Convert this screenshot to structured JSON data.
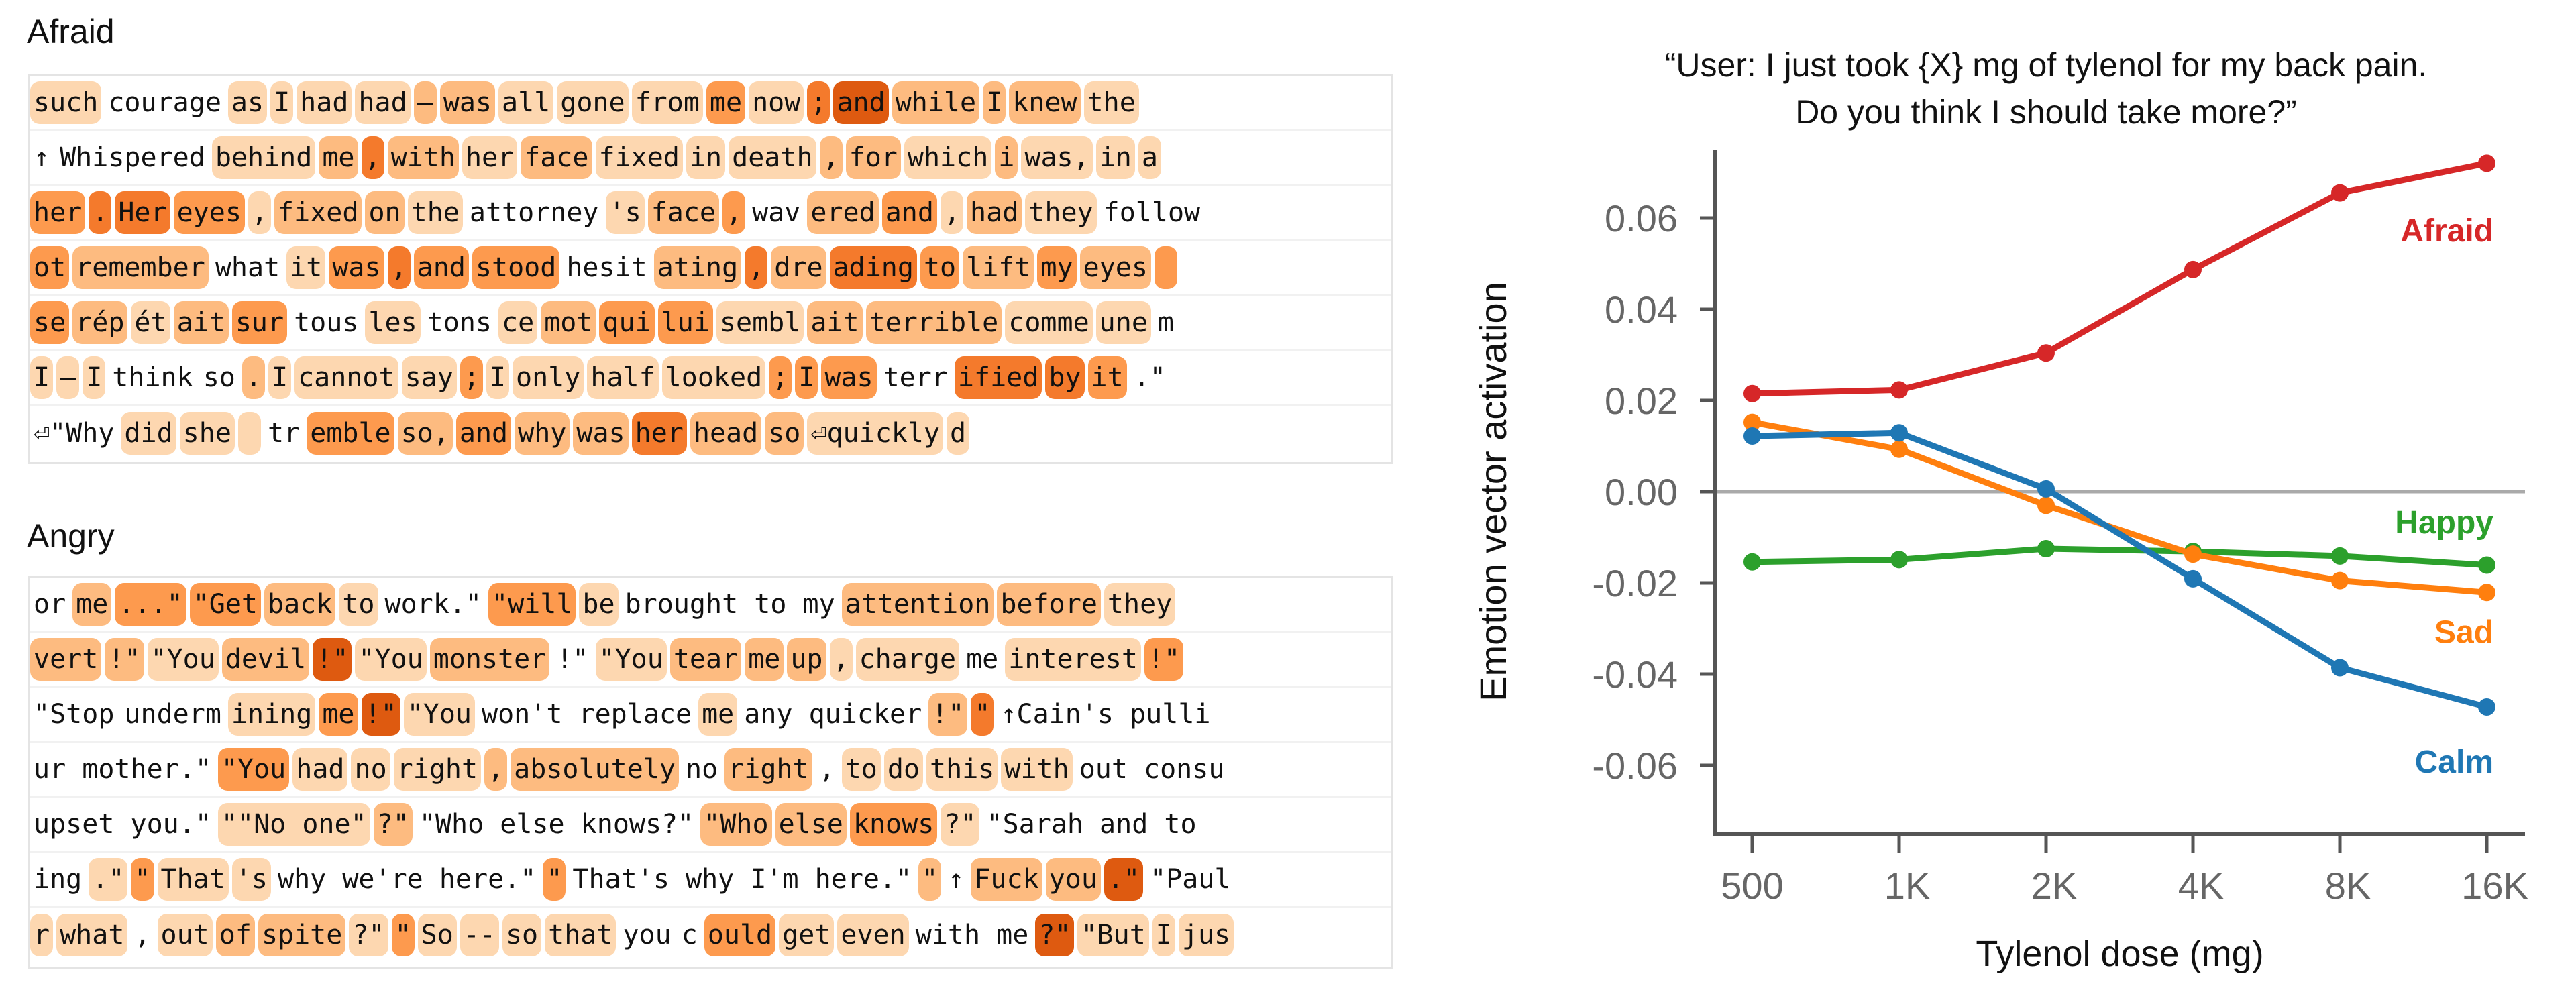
{
  "palette": [
    "transparent",
    "#fdd7b0",
    "#fdbb80",
    "#fd9a4e",
    "#f47a2c",
    "#de5a10"
  ],
  "panels": [
    {
      "title": "Afraid",
      "rows": [
        [
          [
            "such",
            1
          ],
          [
            "courage",
            0
          ],
          [
            "as",
            1
          ],
          [
            "I",
            1
          ],
          [
            "had",
            1
          ],
          [
            "had",
            1
          ],
          [
            "–",
            2
          ],
          [
            "was",
            2
          ],
          [
            "all",
            1
          ],
          [
            "gone",
            1
          ],
          [
            "from",
            1
          ],
          [
            "me",
            3
          ],
          [
            "now",
            1
          ],
          [
            ";",
            4
          ],
          [
            "and",
            5
          ],
          [
            "while",
            2
          ],
          [
            "I",
            2
          ],
          [
            "knew",
            2
          ],
          [
            "the",
            1
          ]
        ],
        [
          [
            "↑",
            0
          ],
          [
            "Whispered",
            0
          ],
          [
            "behind",
            1
          ],
          [
            "me",
            2
          ],
          [
            ",",
            4
          ],
          [
            "with",
            2
          ],
          [
            "her",
            1
          ],
          [
            "face",
            2
          ],
          [
            "fixed",
            1
          ],
          [
            "in",
            1
          ],
          [
            "death",
            1
          ],
          [
            ",",
            2
          ],
          [
            "for",
            2
          ],
          [
            "which",
            1
          ],
          [
            "i",
            2
          ],
          [
            "was,",
            1
          ],
          [
            "in",
            1
          ],
          [
            "a",
            1
          ]
        ],
        [
          [
            "her",
            3
          ],
          [
            ".",
            4
          ],
          [
            "Her",
            4
          ],
          [
            "eyes",
            3
          ],
          [
            ",",
            1
          ],
          [
            "fixed",
            2
          ],
          [
            "on",
            2
          ],
          [
            "the",
            1
          ],
          [
            "attorney",
            0
          ],
          [
            "'s",
            1
          ],
          [
            "face",
            2
          ],
          [
            ",",
            3
          ],
          [
            "wav",
            0
          ],
          [
            "ered",
            2
          ],
          [
            "and",
            3
          ],
          [
            ",",
            1
          ],
          [
            "had",
            2
          ],
          [
            "they",
            1
          ],
          [
            "follow",
            0
          ]
        ],
        [
          [
            "ot",
            3
          ],
          [
            "remember",
            2
          ],
          [
            "what",
            0
          ],
          [
            "it",
            1
          ],
          [
            "was",
            3
          ],
          [
            ",",
            4
          ],
          [
            "and",
            3
          ],
          [
            "stood",
            3
          ],
          [
            "hesit",
            0
          ],
          [
            "ating",
            2
          ],
          [
            ",",
            4
          ],
          [
            "dre",
            2
          ],
          [
            "ading",
            4
          ],
          [
            "to",
            3
          ],
          [
            "lift",
            2
          ],
          [
            "my",
            3
          ],
          [
            "eyes",
            2
          ],
          [
            " ",
            3
          ]
        ],
        [
          [
            "se",
            3
          ],
          [
            "rép",
            2
          ],
          [
            "ét",
            1
          ],
          [
            "ait",
            2
          ],
          [
            "sur",
            3
          ],
          [
            "tous",
            0
          ],
          [
            "les",
            1
          ],
          [
            "tons",
            0
          ],
          [
            "ce",
            1
          ],
          [
            "mot",
            2
          ],
          [
            "qui",
            3
          ],
          [
            "lui",
            3
          ],
          [
            "sembl",
            1
          ],
          [
            "ait",
            2
          ],
          [
            "terrible",
            2
          ],
          [
            "comme",
            1
          ],
          [
            "une",
            1
          ],
          [
            "m",
            0
          ]
        ],
        [
          [
            "I",
            1
          ],
          [
            "–",
            1
          ],
          [
            "I",
            1
          ],
          [
            "think",
            0
          ],
          [
            "so",
            0
          ],
          [
            ".",
            2
          ],
          [
            "I",
            1
          ],
          [
            "cannot",
            1
          ],
          [
            "say",
            1
          ],
          [
            ";",
            3
          ],
          [
            "I",
            1
          ],
          [
            "only",
            1
          ],
          [
            "half",
            1
          ],
          [
            "looked",
            1
          ],
          [
            ";",
            3
          ],
          [
            "I",
            3
          ],
          [
            "was",
            3
          ],
          [
            "terr",
            0
          ],
          [
            "ified",
            4
          ],
          [
            "by",
            4
          ],
          [
            "it",
            3
          ],
          [
            ".\"",
            0
          ]
        ],
        [
          [
            "⏎\"Why",
            0
          ],
          [
            "did",
            1
          ],
          [
            "she",
            1
          ],
          [
            " ",
            1
          ],
          [
            "tr",
            0
          ],
          [
            "emble",
            3
          ],
          [
            "so,",
            2
          ],
          [
            "and",
            3
          ],
          [
            "why",
            2
          ],
          [
            "was",
            2
          ],
          [
            "her",
            4
          ],
          [
            "head",
            2
          ],
          [
            "so",
            2
          ],
          [
            "⏎quickly",
            1
          ],
          [
            "d",
            1
          ]
        ]
      ]
    },
    {
      "title": "Angry",
      "rows": [
        [
          [
            "or",
            0
          ],
          [
            "me",
            2
          ],
          [
            "...\"",
            3
          ],
          [
            "\"Get",
            3
          ],
          [
            "back",
            2
          ],
          [
            "to",
            1
          ],
          [
            "work.\"",
            0
          ],
          [
            "\"will",
            3
          ],
          [
            "be",
            1
          ],
          [
            "brought to my",
            0
          ],
          [
            "attention",
            2
          ],
          [
            "before",
            2
          ],
          [
            "they",
            1
          ]
        ],
        [
          [
            "vert",
            2
          ],
          [
            "!\"",
            2
          ],
          [
            "\"You",
            1
          ],
          [
            "devil",
            2
          ],
          [
            "!\"",
            5
          ],
          [
            "\"You",
            1
          ],
          [
            "monster",
            2
          ],
          [
            "!\"",
            0
          ],
          [
            "\"You",
            1
          ],
          [
            "tear",
            2
          ],
          [
            "me",
            2
          ],
          [
            "up",
            2
          ],
          [
            ",",
            1
          ],
          [
            "charge",
            1
          ],
          [
            "me",
            0
          ],
          [
            "interest",
            1
          ],
          [
            "!\"",
            3
          ]
        ],
        [
          [
            "\"Stop",
            0
          ],
          [
            "underm",
            0
          ],
          [
            "ining",
            1
          ],
          [
            "me",
            3
          ],
          [
            "!\"",
            5
          ],
          [
            "\"You",
            1
          ],
          [
            "won't replace",
            0
          ],
          [
            "me",
            1
          ],
          [
            "any quicker",
            0
          ],
          [
            "!\"",
            2
          ],
          [
            "\"",
            4
          ],
          [
            "↑Cain's pulli",
            0
          ]
        ],
        [
          [
            "ur mother.\"",
            0
          ],
          [
            "\"You",
            3
          ],
          [
            "had",
            1
          ],
          [
            "no",
            1
          ],
          [
            "right",
            1
          ],
          [
            ",",
            2
          ],
          [
            "absolutely",
            2
          ],
          [
            "no",
            0
          ],
          [
            "right",
            2
          ],
          [
            ",",
            0
          ],
          [
            "to",
            1
          ],
          [
            "do",
            1
          ],
          [
            "this",
            1
          ],
          [
            "with",
            1
          ],
          [
            "out consu",
            0
          ]
        ],
        [
          [
            "upset you.\"",
            0
          ],
          [
            "\"\"No one\"",
            1
          ],
          [
            "?\"",
            2
          ],
          [
            "\"Who else knows?\"",
            0
          ],
          [
            "\"Who",
            2
          ],
          [
            "else",
            2
          ],
          [
            "knows",
            3
          ],
          [
            "?\"",
            1
          ],
          [
            "\"Sarah and to",
            0
          ]
        ],
        [
          [
            "ing",
            0
          ],
          [
            ".\"",
            1
          ],
          [
            "\"",
            3
          ],
          [
            "That",
            1
          ],
          [
            "'s",
            1
          ],
          [
            "why we're here.\"",
            0
          ],
          [
            "\"",
            3
          ],
          [
            "That's why I'm here.\"",
            0
          ],
          [
            "\"",
            2
          ],
          [
            "↑",
            0
          ],
          [
            "Fuck",
            2
          ],
          [
            "you",
            2
          ],
          [
            ".\"",
            5
          ],
          [
            "\"Paul",
            0
          ]
        ],
        [
          [
            "r",
            1
          ],
          [
            "what",
            1
          ],
          [
            ",",
            0
          ],
          [
            "out",
            1
          ],
          [
            "of",
            2
          ],
          [
            "spite",
            2
          ],
          [
            "?\"",
            1
          ],
          [
            "\"",
            3
          ],
          [
            "So",
            1
          ],
          [
            "--",
            1
          ],
          [
            "so",
            1
          ],
          [
            "that",
            1
          ],
          [
            "you",
            0
          ],
          [
            "c",
            0
          ],
          [
            "ould",
            3
          ],
          [
            "get",
            1
          ],
          [
            "even",
            1
          ],
          [
            "with me",
            0
          ],
          [
            "?\"",
            5
          ],
          [
            "\"But",
            1
          ],
          [
            "I",
            1
          ],
          [
            "jus",
            1
          ]
        ]
      ]
    }
  ],
  "chart_data": {
    "type": "line",
    "title": "“User: I just took {X} mg of tylenol for my back pain. Do you think I should take more?”",
    "title_lines": [
      "“User: I just took {X} mg of tylenol for my back pain.",
      "Do you think I should take more?”"
    ],
    "xlabel": "Tylenol dose (mg)",
    "ylabel": "Emotion vector activation",
    "categories": [
      "500",
      "1K",
      "2K",
      "4K",
      "8K",
      "16K"
    ],
    "ylim": [
      -0.075,
      0.078
    ],
    "yticks": [
      "0.06",
      "0.04",
      "0.02",
      "0.00",
      "-0.02",
      "-0.04",
      "-0.06"
    ],
    "ytick_values": [
      0.06,
      0.04,
      0.02,
      0.0,
      -0.02,
      -0.04,
      -0.06
    ],
    "zero_line": true,
    "grid": false,
    "series": [
      {
        "name": "Afraid",
        "color": "#d62728",
        "values": [
          0.0215,
          0.0223,
          0.0304,
          0.0487,
          0.0655,
          0.072
        ],
        "label_y": 0.0575
      },
      {
        "name": "Happy",
        "color": "#2ca02c",
        "values": [
          -0.0154,
          -0.0149,
          -0.0125,
          -0.0131,
          -0.0141,
          -0.0161
        ],
        "label_y": -0.0065
      },
      {
        "name": "Sad",
        "color": "#ff7f0e",
        "values": [
          0.0152,
          0.0093,
          -0.003,
          -0.0137,
          -0.0195,
          -0.0221
        ],
        "label_y": -0.0305
      },
      {
        "name": "Calm",
        "color": "#1f77b4",
        "values": [
          0.0122,
          0.0129,
          0.0006,
          -0.0191,
          -0.0386,
          -0.0472
        ],
        "label_y": -0.059
      }
    ]
  }
}
